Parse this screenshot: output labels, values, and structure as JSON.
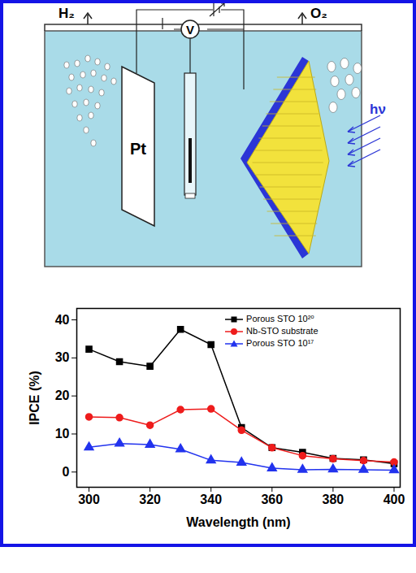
{
  "diagram": {
    "labels": {
      "hydrogen": "H₂",
      "oxygen": "O₂",
      "counter_electrode": "Pt",
      "voltmeter": "V",
      "light": "hν"
    }
  },
  "chart_data": {
    "type": "line",
    "x_label": "Wavelength (nm)",
    "y_label": "IPCE (%)",
    "x": [
      300,
      310,
      320,
      330,
      340,
      350,
      360,
      370,
      380,
      390,
      400
    ],
    "series": [
      {
        "name": "Porous STO 10²⁰",
        "color": "#000000",
        "marker": "square",
        "values": [
          32.3,
          29.0,
          27.8,
          37.5,
          33.5,
          11.7,
          6.4,
          5.2,
          3.6,
          3.2,
          2.2
        ]
      },
      {
        "name": "Nb-STO substrate",
        "color": "#ee1c1c",
        "marker": "circle",
        "values": [
          14.5,
          14.3,
          12.3,
          16.4,
          16.6,
          11.0,
          6.4,
          4.3,
          3.5,
          3.0,
          2.6
        ]
      },
      {
        "name": "Porous STO 10¹⁷",
        "color": "#2233ee",
        "marker": "triangle",
        "values": [
          6.5,
          7.5,
          7.2,
          6.0,
          3.1,
          2.5,
          1.0,
          0.6,
          0.7,
          0.6,
          0.5
        ]
      }
    ],
    "xlim": [
      296,
      402
    ],
    "xticks": [
      300,
      320,
      340,
      360,
      380,
      400
    ],
    "ylim": [
      -4,
      43
    ],
    "yticks": [
      0,
      10,
      20,
      30,
      40
    ],
    "legend": "top-right",
    "grid": false
  }
}
